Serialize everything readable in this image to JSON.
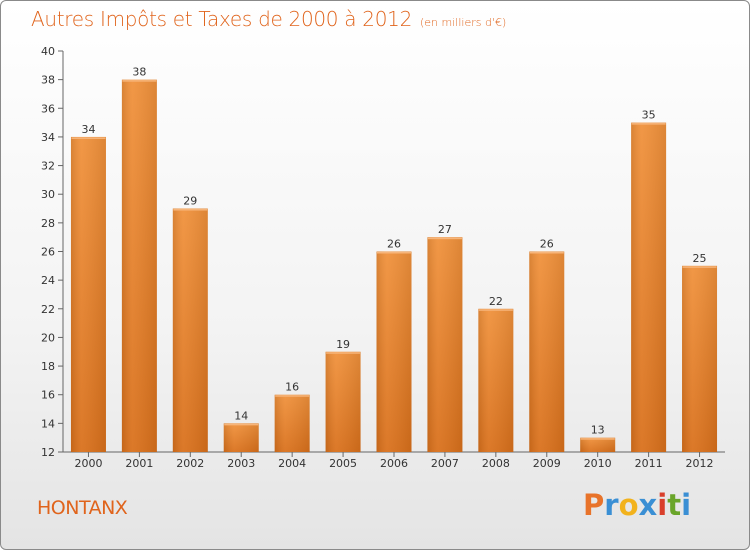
{
  "chart_data": {
    "type": "bar",
    "title": "Autres Impôts et Taxes de 2000 à 2012",
    "subtitle": "(en milliers d'€)",
    "categories": [
      "2000",
      "2001",
      "2002",
      "2003",
      "2004",
      "2005",
      "2006",
      "2007",
      "2008",
      "2009",
      "2010",
      "2011",
      "2012"
    ],
    "values": [
      34,
      38,
      29,
      14,
      16,
      19,
      26,
      27,
      22,
      26,
      13,
      35,
      25
    ],
    "ylim": [
      12,
      40
    ],
    "yticks": [
      12,
      14,
      16,
      18,
      20,
      22,
      24,
      26,
      28,
      30,
      32,
      34,
      36,
      38,
      40
    ],
    "grid": false,
    "bar_color": "#f0913b",
    "bar_color_dark": "#d9701b"
  },
  "footer": {
    "location": "HONTANX",
    "brand_letters": [
      "P",
      "r",
      "o",
      "x",
      "i",
      "t",
      "i"
    ],
    "brand_colors": [
      "#e8732a",
      "#3a8fd4",
      "#f2b21c",
      "#3a8fd4",
      "#d93f2b",
      "#6aa52a",
      "#3a8fd4"
    ]
  }
}
